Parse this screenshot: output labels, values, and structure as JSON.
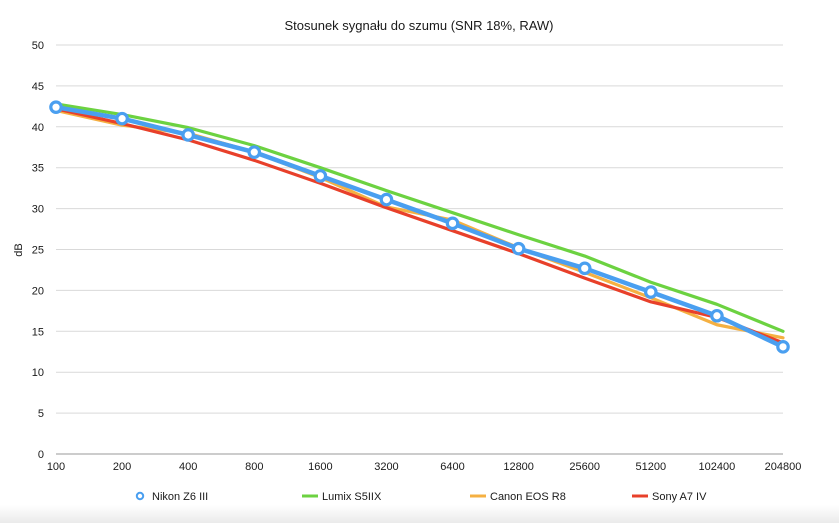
{
  "chart_data": {
    "type": "line",
    "title": "Stosunek sygnału do szumu (SNR 18%, RAW)",
    "xlabel": "",
    "ylabel": "dB",
    "categories": [
      "100",
      "200",
      "400",
      "800",
      "1600",
      "3200",
      "6400",
      "12800",
      "25600",
      "51200",
      "102400",
      "204800"
    ],
    "ylim": [
      0,
      50
    ],
    "yticks": [
      0,
      5,
      10,
      15,
      20,
      25,
      30,
      35,
      40,
      45,
      50
    ],
    "grid": true,
    "legend_position": "bottom",
    "series": [
      {
        "name": "Nikon Z6 III",
        "color": "#4a9ff0",
        "markers": true,
        "values": [
          42.4,
          41.0,
          39.0,
          36.9,
          34.0,
          31.1,
          28.2,
          25.1,
          22.7,
          19.8,
          16.9,
          13.1
        ]
      },
      {
        "name": "Lumix S5IIX",
        "color": "#6cd241",
        "markers": false,
        "values": [
          42.8,
          41.5,
          39.9,
          37.7,
          35.0,
          32.2,
          29.5,
          26.8,
          24.2,
          21.0,
          18.3,
          15.0
        ]
      },
      {
        "name": "Canon EOS R8",
        "color": "#f5b042",
        "markers": false,
        "values": [
          42.0,
          40.2,
          39.2,
          36.9,
          33.8,
          30.2,
          28.6,
          25.2,
          22.2,
          19.1,
          15.8,
          14.2
        ]
      },
      {
        "name": "Sony A7 IV",
        "color": "#e8402a",
        "markers": false,
        "values": [
          42.2,
          40.4,
          38.4,
          35.9,
          33.1,
          30.1,
          27.3,
          24.5,
          21.5,
          18.6,
          16.7,
          13.6
        ]
      }
    ]
  }
}
